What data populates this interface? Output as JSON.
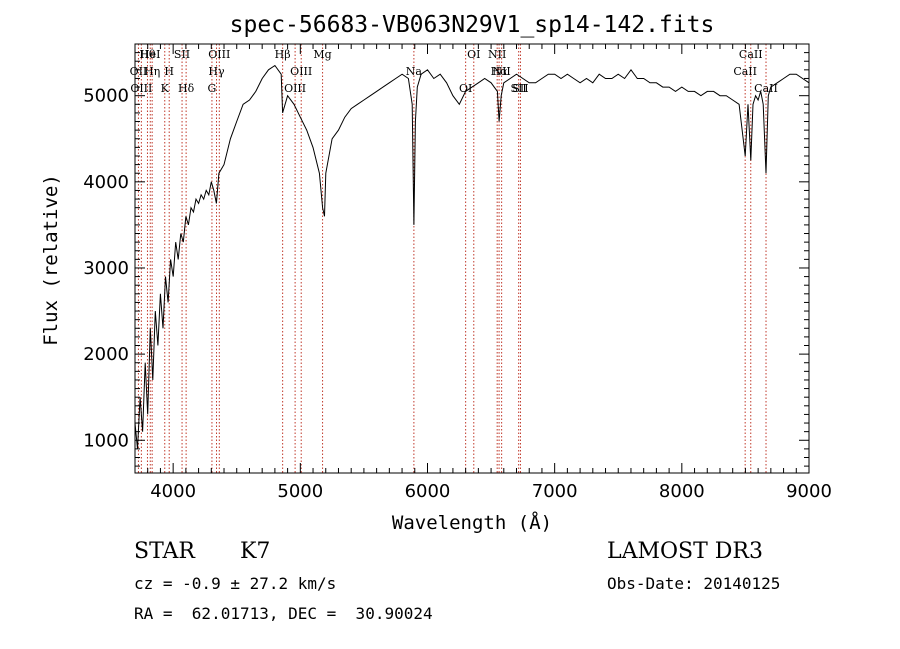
{
  "chart_data": {
    "type": "line",
    "title": "spec-56683-VB063N29V1_sp14-142.fits",
    "xlabel": "Wavelength (Å)",
    "ylabel": "Flux (relative)",
    "xlim": [
      3700,
      9000
    ],
    "ylim": [
      620,
      5600
    ],
    "x_ticks": [
      4000,
      5000,
      6000,
      7000,
      8000,
      9000
    ],
    "y_ticks": [
      1000,
      2000,
      3000,
      4000,
      5000
    ],
    "grid": false,
    "series": [
      {
        "name": "flux",
        "x": [
          3700,
          3720,
          3740,
          3760,
          3780,
          3800,
          3820,
          3840,
          3860,
          3880,
          3900,
          3920,
          3940,
          3960,
          3980,
          4000,
          4020,
          4040,
          4060,
          4080,
          4100,
          4120,
          4140,
          4160,
          4180,
          4200,
          4220,
          4240,
          4260,
          4280,
          4300,
          4320,
          4340,
          4360,
          4380,
          4400,
          4450,
          4500,
          4550,
          4600,
          4650,
          4700,
          4750,
          4800,
          4850,
          4861,
          4900,
          4950,
          5000,
          5050,
          5100,
          5150,
          5175,
          5190,
          5200,
          5250,
          5300,
          5350,
          5400,
          5450,
          5500,
          5550,
          5600,
          5650,
          5700,
          5750,
          5800,
          5850,
          5880,
          5893,
          5905,
          5920,
          5950,
          6000,
          6050,
          6100,
          6150,
          6200,
          6250,
          6300,
          6350,
          6400,
          6450,
          6500,
          6550,
          6563,
          6580,
          6600,
          6650,
          6700,
          6750,
          6800,
          6850,
          6900,
          6950,
          7000,
          7050,
          7100,
          7150,
          7200,
          7250,
          7300,
          7350,
          7400,
          7450,
          7500,
          7550,
          7600,
          7650,
          7700,
          7750,
          7800,
          7850,
          7900,
          7950,
          8000,
          8050,
          8100,
          8150,
          8200,
          8250,
          8300,
          8350,
          8400,
          8450,
          8498,
          8520,
          8542,
          8560,
          8580,
          8600,
          8620,
          8640,
          8662,
          8680,
          8700,
          8750,
          8800,
          8850,
          8900,
          8950,
          9000
        ],
        "values": [
          1200,
          900,
          1500,
          1100,
          1900,
          1300,
          2300,
          1700,
          2500,
          2100,
          2700,
          2300,
          2900,
          2600,
          3100,
          2900,
          3300,
          3100,
          3400,
          3300,
          3600,
          3500,
          3700,
          3650,
          3800,
          3750,
          3850,
          3800,
          3900,
          3850,
          4000,
          3900,
          3750,
          4100,
          4150,
          4200,
          4500,
          4700,
          4900,
          4950,
          5050,
          5200,
          5300,
          5350,
          5250,
          4800,
          5000,
          4900,
          4750,
          4600,
          4400,
          4100,
          3700,
          3600,
          4100,
          4500,
          4600,
          4750,
          4850,
          4900,
          4950,
          5000,
          5050,
          5100,
          5150,
          5200,
          5250,
          5200,
          4900,
          3500,
          4700,
          5100,
          5250,
          5300,
          5200,
          5250,
          5150,
          5000,
          4900,
          5050,
          5100,
          5150,
          5200,
          5150,
          5050,
          4700,
          5000,
          5150,
          5200,
          5250,
          5200,
          5150,
          5150,
          5200,
          5250,
          5250,
          5200,
          5250,
          5200,
          5150,
          5200,
          5150,
          5250,
          5200,
          5200,
          5250,
          5200,
          5300,
          5200,
          5200,
          5150,
          5150,
          5100,
          5100,
          5050,
          5100,
          5050,
          5050,
          5000,
          5050,
          5050,
          5000,
          5000,
          4950,
          4900,
          4300,
          4900,
          4250,
          4900,
          5000,
          4950,
          5050,
          4900,
          4100,
          5000,
          5100,
          5150,
          5200,
          5250,
          5250,
          5200,
          5150
        ]
      }
    ],
    "lines": [
      {
        "label": "Hθ",
        "x": 3798
      },
      {
        "label": "OII",
        "x": 3727
      },
      {
        "label": "OIII",
        "x": 3750
      },
      {
        "label": "HeI",
        "x": 3820
      },
      {
        "label": "Hη",
        "x": 3835
      },
      {
        "label": "K",
        "x": 3934
      },
      {
        "label": "SII",
        "x": 4070
      },
      {
        "label": "H",
        "x": 3969
      },
      {
        "label": "Hδ",
        "x": 4102
      },
      {
        "label": "OIII",
        "x": 4363
      },
      {
        "label": "Hγ",
        "x": 4341
      },
      {
        "label": "G",
        "x": 4305
      },
      {
        "label": "Hβ",
        "x": 4861
      },
      {
        "label": "OIII",
        "x": 5007
      },
      {
        "label": "OIII",
        "x": 4959
      },
      {
        "label": "Mg",
        "x": 5175
      },
      {
        "label": "Na",
        "x": 5893
      },
      {
        "label": "OI",
        "x": 6300
      },
      {
        "label": "OI",
        "x": 6364
      },
      {
        "label": "Hα",
        "x": 6563
      },
      {
        "label": "SII",
        "x": 6717
      },
      {
        "label": "NII",
        "x": 6548
      },
      {
        "label": "NII",
        "x": 6583
      },
      {
        "label": "SII",
        "x": 6731
      },
      {
        "label": "CaII",
        "x": 8542
      },
      {
        "label": "CaII",
        "x": 8498
      },
      {
        "label": "CaII",
        "x": 8662
      }
    ]
  },
  "info": {
    "class_label": "STAR",
    "subclass": "K7",
    "survey": "LAMOST DR3",
    "cz_text": "cz = -0.9 ± 27.2 km/s",
    "obs_date": "Obs-Date: 20140125",
    "coords": "RA =  62.01713, DEC =  30.90024"
  }
}
